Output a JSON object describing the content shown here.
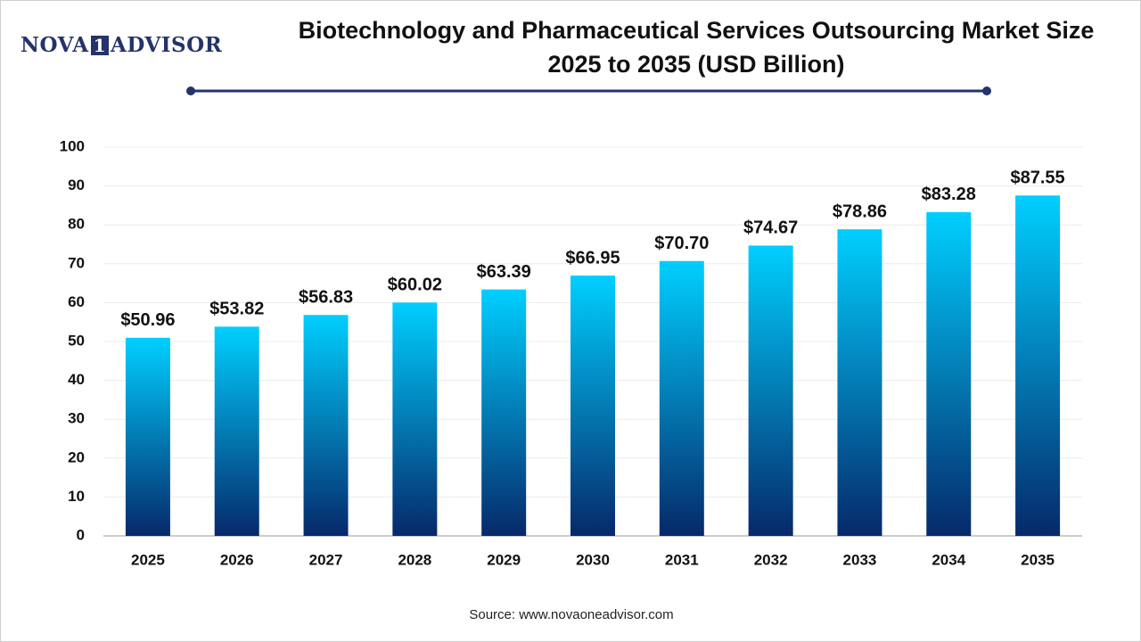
{
  "logo": [
    "NOVA",
    "1",
    "ADVISOR"
  ],
  "source": "Source: www.novaoneadvisor.com",
  "chart_data": {
    "type": "bar",
    "title": "Biotechnology and Pharmaceutical Services Outsourcing Market Size 2025 to 2035 (USD Billion)",
    "categories": [
      "2025",
      "2026",
      "2027",
      "2028",
      "2029",
      "2030",
      "2031",
      "2032",
      "2033",
      "2034",
      "2035"
    ],
    "values": [
      50.96,
      53.82,
      56.83,
      60.02,
      63.39,
      66.95,
      70.7,
      74.67,
      78.86,
      83.28,
      87.55
    ],
    "value_labels": [
      "$50.96",
      "$53.82",
      "$56.83",
      "$60.02",
      "$63.39",
      "$66.95",
      "$70.70",
      "$74.67",
      "$78.86",
      "$83.28",
      "$87.55"
    ],
    "gradient": [
      "#00cfff",
      "#06296a"
    ],
    "ylim": [
      0,
      100
    ],
    "yticks": [
      0,
      10,
      20,
      30,
      40,
      50,
      60,
      70,
      80,
      90,
      100
    ],
    "grid": true
  }
}
